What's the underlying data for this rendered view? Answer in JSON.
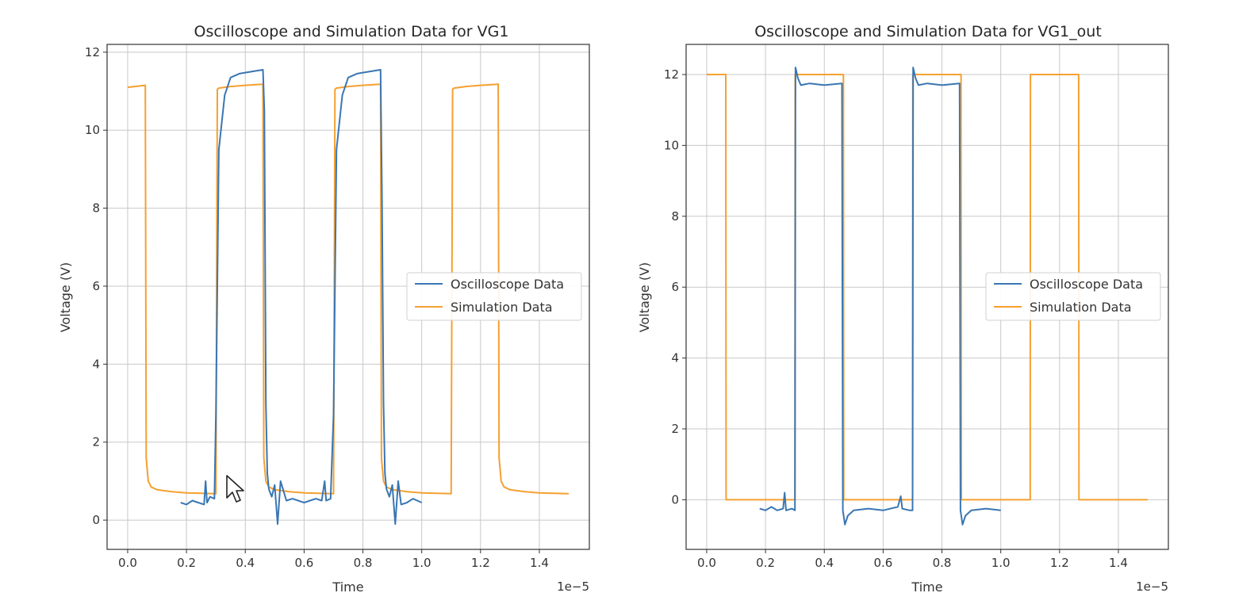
{
  "colors": {
    "oscilloscope": "#3a76b3",
    "simulation": "#f5a030"
  },
  "chart_data": [
    {
      "type": "line",
      "title": "Oscilloscope and Simulation Data for VG1",
      "xlabel": "Time",
      "ylabel": "Voltage (V)",
      "x_offset_text": "1e−5",
      "xlim": [
        -0.07,
        1.57
      ],
      "ylim": [
        -0.75,
        12.2
      ],
      "xticks": [
        0.0,
        0.2,
        0.4,
        0.6,
        0.8,
        1.0,
        1.2,
        1.4
      ],
      "xtick_labels": [
        "0.0",
        "0.2",
        "0.4",
        "0.6",
        "0.8",
        "1.0",
        "1.2",
        "1.4"
      ],
      "yticks": [
        0,
        2,
        4,
        6,
        8,
        10,
        12
      ],
      "ytick_labels": [
        "0",
        "2",
        "4",
        "6",
        "8",
        "10",
        "12"
      ],
      "grid": true,
      "legend_position": "center-right",
      "series": [
        {
          "name": "Oscilloscope Data",
          "color": "#3a76b3",
          "x": [
            0.18,
            0.2,
            0.22,
            0.24,
            0.26,
            0.265,
            0.27,
            0.28,
            0.295,
            0.3,
            0.31,
            0.33,
            0.35,
            0.38,
            0.42,
            0.46,
            0.465,
            0.47,
            0.475,
            0.48,
            0.49,
            0.5,
            0.51,
            0.52,
            0.54,
            0.56,
            0.58,
            0.6,
            0.62,
            0.64,
            0.66,
            0.67,
            0.675,
            0.69,
            0.7,
            0.71,
            0.73,
            0.75,
            0.78,
            0.82,
            0.86,
            0.865,
            0.87,
            0.875,
            0.88,
            0.89,
            0.9,
            0.91,
            0.92,
            0.93,
            0.95,
            0.97,
            1.0
          ],
          "y": [
            0.45,
            0.4,
            0.5,
            0.45,
            0.4,
            1.0,
            0.45,
            0.6,
            0.55,
            2.7,
            9.5,
            10.9,
            11.35,
            11.45,
            11.5,
            11.55,
            10.5,
            3.0,
            1.2,
            0.8,
            0.6,
            0.9,
            -0.1,
            1.0,
            0.5,
            0.55,
            0.5,
            0.45,
            0.5,
            0.55,
            0.5,
            1.0,
            0.5,
            0.55,
            2.7,
            9.5,
            10.9,
            11.35,
            11.45,
            11.5,
            11.55,
            8.2,
            3.0,
            1.2,
            0.8,
            0.6,
            0.9,
            -0.1,
            1.0,
            0.4,
            0.45,
            0.55,
            0.45
          ]
        },
        {
          "name": "Simulation Data",
          "color": "#f5a030",
          "x": [
            0.0,
            0.06,
            0.063,
            0.07,
            0.08,
            0.1,
            0.15,
            0.2,
            0.3,
            0.305,
            0.31,
            0.35,
            0.4,
            0.46,
            0.463,
            0.47,
            0.48,
            0.5,
            0.55,
            0.6,
            0.7,
            0.705,
            0.71,
            0.75,
            0.8,
            0.86,
            0.863,
            0.87,
            0.88,
            0.9,
            0.95,
            1.0,
            1.1,
            1.105,
            1.11,
            1.15,
            1.2,
            1.26,
            1.263,
            1.27,
            1.28,
            1.3,
            1.35,
            1.4,
            1.5
          ],
          "y": [
            11.1,
            11.15,
            1.6,
            1.0,
            0.85,
            0.78,
            0.73,
            0.7,
            0.68,
            11.05,
            11.08,
            11.12,
            11.15,
            11.18,
            1.6,
            1.0,
            0.85,
            0.78,
            0.73,
            0.7,
            0.68,
            11.05,
            11.08,
            11.12,
            11.15,
            11.18,
            1.6,
            1.0,
            0.85,
            0.78,
            0.73,
            0.7,
            0.68,
            11.05,
            11.08,
            11.12,
            11.15,
            11.18,
            1.6,
            1.0,
            0.85,
            0.78,
            0.73,
            0.7,
            0.68
          ]
        }
      ]
    },
    {
      "type": "line",
      "title": "Oscilloscope and Simulation Data for VG1_out",
      "xlabel": "Time",
      "ylabel": "Voltage (V)",
      "x_offset_text": "1e−5",
      "xlim": [
        -0.07,
        1.57
      ],
      "ylim": [
        -1.4,
        12.85
      ],
      "xticks": [
        0.0,
        0.2,
        0.4,
        0.6,
        0.8,
        1.0,
        1.2,
        1.4
      ],
      "xtick_labels": [
        "0.0",
        "0.2",
        "0.4",
        "0.6",
        "0.8",
        "1.0",
        "1.2",
        "1.4"
      ],
      "yticks": [
        0,
        2,
        4,
        6,
        8,
        10,
        12
      ],
      "ytick_labels": [
        "0",
        "2",
        "4",
        "6",
        "8",
        "10",
        "12"
      ],
      "grid": true,
      "legend_position": "center-right",
      "series": [
        {
          "name": "Oscilloscope Data",
          "color": "#3a76b3",
          "x": [
            0.18,
            0.2,
            0.22,
            0.24,
            0.26,
            0.265,
            0.27,
            0.29,
            0.3,
            0.302,
            0.31,
            0.32,
            0.35,
            0.4,
            0.46,
            0.463,
            0.47,
            0.48,
            0.5,
            0.55,
            0.6,
            0.65,
            0.66,
            0.665,
            0.69,
            0.7,
            0.702,
            0.71,
            0.72,
            0.75,
            0.8,
            0.86,
            0.863,
            0.87,
            0.88,
            0.9,
            0.95,
            1.0
          ],
          "y": [
            -0.25,
            -0.3,
            -0.2,
            -0.3,
            -0.25,
            0.2,
            -0.3,
            -0.25,
            -0.3,
            12.2,
            11.9,
            11.7,
            11.75,
            11.7,
            11.75,
            -0.3,
            -0.7,
            -0.45,
            -0.3,
            -0.25,
            -0.3,
            -0.2,
            0.1,
            -0.25,
            -0.3,
            -0.3,
            12.2,
            11.9,
            11.7,
            11.75,
            11.7,
            11.75,
            -0.3,
            -0.7,
            -0.45,
            -0.3,
            -0.25,
            -0.3
          ]
        },
        {
          "name": "Simulation Data",
          "color": "#f5a030",
          "x": [
            0.0,
            0.065,
            0.066,
            0.3,
            0.301,
            0.465,
            0.466,
            0.7,
            0.701,
            0.865,
            0.866,
            1.1,
            1.101,
            1.265,
            1.266,
            1.5
          ],
          "y": [
            12.0,
            12.0,
            0.0,
            0.0,
            12.0,
            12.0,
            0.0,
            0.0,
            12.0,
            12.0,
            0.0,
            0.0,
            12.0,
            12.0,
            0.0,
            0.0
          ]
        }
      ]
    }
  ]
}
